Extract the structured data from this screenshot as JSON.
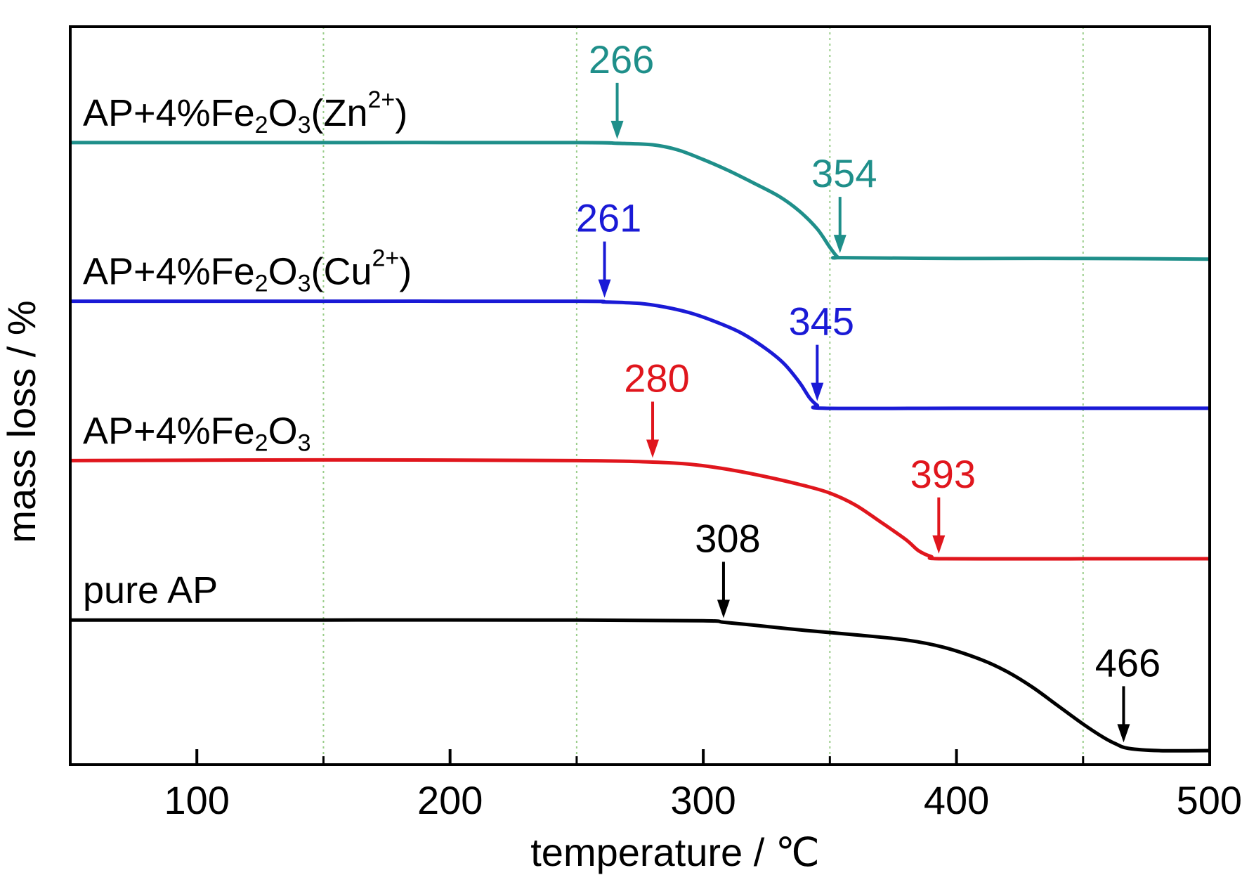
{
  "chart_data": {
    "type": "line",
    "title": "",
    "xlabel": "temperature / ℃",
    "ylabel": "mass loss / %",
    "xlim": [
      50,
      500
    ],
    "ylim": [
      0,
      100
    ],
    "x_ticks": [
      100,
      200,
      300,
      400,
      500
    ],
    "x_minor_ticks": [
      150,
      250,
      350,
      450
    ],
    "gridlines_x": [
      150,
      250,
      350,
      450
    ],
    "grid_color": "#9acd8a",
    "y_ticks": [],
    "series": [
      {
        "name_parts": [
          [
            "AP+4%Fe",
            ""
          ],
          [
            "2",
            "sub"
          ],
          [
            "O",
            ""
          ],
          [
            "3",
            "sub"
          ],
          [
            "(Zn",
            ""
          ],
          [
            "2+",
            "sup"
          ],
          [
            ")",
            ""
          ]
        ],
        "color": "#1f8f8a",
        "points": [
          [
            50,
            84.3
          ],
          [
            150,
            84.3
          ],
          [
            250,
            84.3
          ],
          [
            266,
            84.2
          ],
          [
            280,
            84.0
          ],
          [
            290,
            83.3
          ],
          [
            300,
            82.0
          ],
          [
            310,
            80.5
          ],
          [
            320,
            78.8
          ],
          [
            330,
            77.0
          ],
          [
            338,
            75.0
          ],
          [
            345,
            72.6
          ],
          [
            350,
            70.1
          ],
          [
            353,
            68.8
          ],
          [
            355,
            68.7
          ],
          [
            400,
            68.6
          ],
          [
            450,
            68.6
          ],
          [
            500,
            68.5
          ]
        ],
        "annotations": [
          {
            "x": 266,
            "label": "266"
          },
          {
            "x": 354,
            "label": "354"
          }
        ]
      },
      {
        "name_parts": [
          [
            "AP+4%Fe",
            ""
          ],
          [
            "2",
            "sub"
          ],
          [
            "O",
            ""
          ],
          [
            "3",
            "sub"
          ],
          [
            "(Cu",
            ""
          ],
          [
            "2+",
            "sup"
          ],
          [
            ")",
            ""
          ]
        ],
        "color": "#1a1ad6",
        "points": [
          [
            50,
            62.8
          ],
          [
            150,
            62.8
          ],
          [
            250,
            62.8
          ],
          [
            261,
            62.7
          ],
          [
            275,
            62.5
          ],
          [
            285,
            62.0
          ],
          [
            295,
            61.2
          ],
          [
            305,
            60.0
          ],
          [
            315,
            58.5
          ],
          [
            325,
            56.3
          ],
          [
            332,
            54.3
          ],
          [
            338,
            51.8
          ],
          [
            342,
            49.7
          ],
          [
            345,
            48.7
          ],
          [
            348,
            48.3
          ],
          [
            400,
            48.3
          ],
          [
            450,
            48.3
          ],
          [
            500,
            48.3
          ]
        ],
        "annotations": [
          {
            "x": 261,
            "label": "261"
          },
          {
            "x": 345,
            "label": "345"
          }
        ]
      },
      {
        "name_parts": [
          [
            "AP+4%Fe",
            ""
          ],
          [
            "2",
            "sub"
          ],
          [
            "O",
            ""
          ],
          [
            "3",
            "sub"
          ]
        ],
        "color": "#e0161d",
        "points": [
          [
            50,
            41.2
          ],
          [
            150,
            41.3
          ],
          [
            250,
            41.2
          ],
          [
            280,
            41.0
          ],
          [
            295,
            40.7
          ],
          [
            310,
            40.0
          ],
          [
            325,
            39.0
          ],
          [
            340,
            37.8
          ],
          [
            350,
            36.8
          ],
          [
            360,
            35.2
          ],
          [
            370,
            32.9
          ],
          [
            380,
            30.5
          ],
          [
            385,
            29.0
          ],
          [
            390,
            28.2
          ],
          [
            395,
            27.9
          ],
          [
            450,
            27.9
          ],
          [
            500,
            27.9
          ]
        ],
        "annotations": [
          {
            "x": 280,
            "label": "280"
          },
          {
            "x": 393,
            "label": "393"
          }
        ]
      },
      {
        "name_parts": [
          [
            "pure AP",
            ""
          ]
        ],
        "color": "#000000",
        "points": [
          [
            50,
            19.6
          ],
          [
            150,
            19.6
          ],
          [
            250,
            19.6
          ],
          [
            300,
            19.5
          ],
          [
            308,
            19.3
          ],
          [
            320,
            18.9
          ],
          [
            340,
            18.2
          ],
          [
            360,
            17.6
          ],
          [
            380,
            16.9
          ],
          [
            395,
            15.9
          ],
          [
            410,
            14.2
          ],
          [
            420,
            12.6
          ],
          [
            430,
            10.5
          ],
          [
            440,
            8.0
          ],
          [
            450,
            5.5
          ],
          [
            458,
            3.7
          ],
          [
            463,
            2.8
          ],
          [
            468,
            2.2
          ],
          [
            480,
            1.9
          ],
          [
            500,
            1.9
          ]
        ],
        "annotations": [
          {
            "x": 308,
            "label": "308"
          },
          {
            "x": 466,
            "label": "466"
          }
        ]
      }
    ]
  }
}
